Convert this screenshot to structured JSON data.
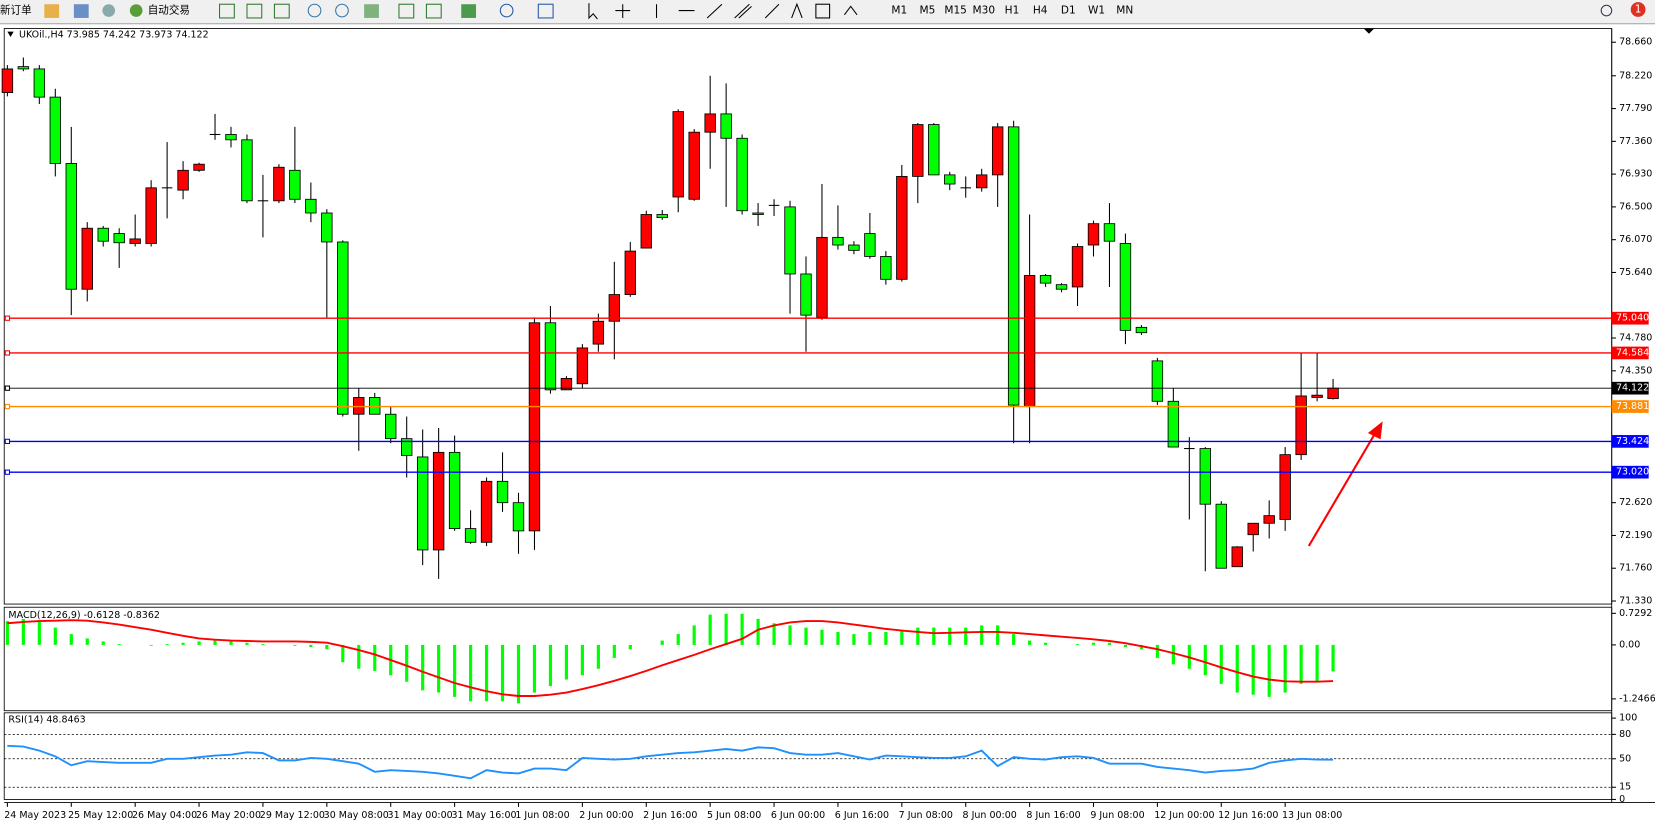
{
  "toolbar": {
    "new_order": "新订单",
    "auto_trading": "自动交易",
    "timeframes": [
      "M1",
      "M5",
      "M15",
      "M30",
      "H1",
      "H4",
      "D1",
      "W1",
      "MN"
    ],
    "notifications": "1"
  },
  "chart_data": [
    {
      "type": "candlestick",
      "header": "UKOil.,H4 73.985 74.242 73.973 74.122",
      "categories": [
        "24 May 2023",
        null,
        null,
        null,
        "25 May 12:00",
        null,
        null,
        null,
        "26 May 04:00",
        null,
        null,
        null,
        "26 May 20:00",
        null,
        null,
        null,
        "29 May 12:00",
        null,
        null,
        null,
        "30 May 08:00",
        null,
        null,
        null,
        "31 May 00:00",
        null,
        null,
        null,
        "31 May 16:00",
        null,
        null,
        null,
        "1 Jun 08:00",
        null,
        null,
        null,
        "2 Jun 00:00",
        null,
        null,
        null,
        "2 Jun 16:00",
        null,
        null,
        null,
        "5 Jun 08:00",
        null,
        null,
        null,
        "6 Jun 00:00",
        null,
        null,
        null,
        "6 Jun 16:00",
        null,
        null,
        null,
        "7 Jun 08:00",
        null,
        null,
        null,
        "8 Jun 00:00",
        null,
        null,
        null,
        "8 Jun 16:00",
        null,
        null,
        null,
        "9 Jun 08:00",
        null,
        null,
        null,
        "12 Jun 00:00",
        null,
        null,
        null,
        "12 Jun 16:00",
        null,
        null,
        null,
        "13 Jun 08:00",
        null,
        null,
        null
      ],
      "open": [
        78.0,
        78.34,
        78.31,
        77.94,
        77.07,
        75.42,
        76.22,
        76.15,
        76.02,
        76.02,
        76.75,
        76.72,
        76.98,
        77.45,
        77.45,
        77.38,
        76.58,
        76.58,
        76.98,
        76.6,
        76.42,
        76.04,
        73.78,
        74.0,
        73.78,
        73.46,
        73.22,
        72.0,
        73.28,
        72.28,
        72.1,
        72.9,
        72.62,
        72.25,
        74.98,
        74.1,
        74.18,
        74.7,
        75.0,
        75.35,
        75.96,
        76.4,
        76.63,
        76.6,
        77.48,
        77.72,
        77.4,
        76.42,
        76.52,
        76.5,
        75.62,
        75.05,
        76.1,
        76.0,
        76.15,
        75.85,
        75.55,
        76.9,
        77.58,
        76.92,
        76.75,
        76.75,
        76.92,
        77.55,
        73.88,
        75.6,
        75.48,
        75.45,
        76.0,
        76.28,
        76.02,
        74.92,
        74.48,
        73.95,
        73.33,
        73.33,
        72.6,
        71.78,
        72.2,
        72.35,
        72.4,
        73.25,
        74.0,
        73.985
      ],
      "high": [
        78.36,
        78.46,
        78.36,
        78.05,
        77.55,
        76.3,
        76.25,
        76.22,
        76.4,
        76.85,
        77.35,
        77.1,
        77.08,
        77.72,
        77.55,
        77.45,
        76.92,
        77.06,
        77.55,
        76.82,
        76.47,
        76.06,
        74.12,
        74.06,
        73.88,
        73.75,
        73.58,
        73.6,
        73.5,
        72.52,
        72.95,
        73.28,
        72.75,
        75.05,
        75.2,
        74.28,
        74.7,
        75.1,
        75.78,
        76.04,
        76.45,
        76.46,
        77.78,
        77.52,
        78.22,
        78.12,
        77.45,
        76.55,
        76.6,
        76.58,
        75.85,
        76.8,
        76.52,
        76.05,
        76.42,
        75.92,
        77.05,
        77.6,
        77.6,
        76.96,
        76.9,
        77.0,
        77.6,
        77.63,
        76.4,
        75.62,
        75.5,
        76.02,
        76.32,
        76.55,
        76.15,
        74.95,
        74.52,
        74.12,
        73.48,
        73.35,
        72.64,
        72.05,
        72.35,
        72.65,
        73.35,
        74.58,
        74.58,
        74.242
      ],
      "low": [
        77.95,
        78.28,
        77.85,
        76.9,
        75.08,
        75.26,
        75.98,
        75.7,
        75.98,
        75.98,
        76.35,
        76.6,
        76.96,
        77.38,
        77.28,
        76.55,
        76.1,
        76.55,
        76.55,
        76.3,
        75.05,
        73.75,
        73.3,
        73.78,
        73.4,
        72.95,
        71.8,
        71.62,
        72.25,
        72.08,
        72.05,
        72.5,
        71.95,
        72.0,
        74.05,
        74.1,
        74.12,
        74.6,
        74.5,
        75.32,
        75.96,
        76.33,
        76.43,
        76.58,
        77.0,
        76.5,
        76.4,
        76.25,
        76.38,
        75.1,
        74.6,
        75.02,
        75.94,
        75.88,
        75.82,
        75.48,
        75.52,
        76.55,
        76.92,
        76.72,
        76.62,
        76.7,
        76.5,
        73.4,
        73.4,
        75.45,
        75.38,
        75.2,
        75.85,
        75.45,
        74.7,
        74.82,
        73.9,
        73.35,
        72.4,
        71.72,
        71.8,
        71.78,
        71.98,
        72.15,
        72.25,
        73.18,
        73.95,
        73.973
      ],
      "close": [
        78.31,
        78.31,
        77.94,
        77.07,
        75.42,
        76.22,
        76.05,
        76.03,
        76.08,
        76.75,
        76.75,
        76.98,
        77.06,
        77.45,
        77.38,
        76.58,
        76.58,
        77.02,
        76.6,
        76.42,
        76.04,
        73.78,
        74.0,
        73.78,
        73.46,
        73.24,
        72.0,
        73.28,
        72.28,
        72.1,
        72.9,
        72.62,
        72.25,
        74.98,
        74.1,
        74.25,
        74.65,
        75.0,
        75.35,
        75.92,
        76.4,
        76.36,
        77.75,
        77.48,
        77.72,
        77.4,
        76.45,
        76.4,
        76.52,
        75.62,
        75.08,
        76.1,
        76.0,
        75.93,
        75.85,
        75.55,
        76.9,
        77.58,
        76.92,
        76.8,
        76.75,
        76.92,
        77.55,
        73.9,
        75.6,
        75.5,
        75.42,
        75.98,
        76.28,
        76.05,
        74.88,
        74.85,
        73.95,
        73.35,
        73.33,
        72.6,
        71.76,
        72.04,
        72.35,
        72.45,
        73.25,
        74.02,
        74.03,
        74.122
      ],
      "up_color": "#ff0000",
      "down_color": "#00ff00",
      "wick_color": "#000000",
      "ylim": [
        71.29,
        78.84
      ],
      "yticks": [
        {
          "value": 78.66,
          "label": "78.660"
        },
        {
          "value": 78.22,
          "label": "78.220"
        },
        {
          "value": 77.79,
          "label": "77.790"
        },
        {
          "value": 77.36,
          "label": "77.360"
        },
        {
          "value": 76.93,
          "label": "76.930"
        },
        {
          "value": 76.5,
          "label": "76.500"
        },
        {
          "value": 76.07,
          "label": "76.070"
        },
        {
          "value": 75.64,
          "label": "75.640"
        },
        {
          "value": 74.78,
          "label": "74.780"
        },
        {
          "value": 74.35,
          "label": "74.350"
        },
        {
          "value": 72.62,
          "label": "72.620"
        },
        {
          "value": 72.19,
          "label": "72.190"
        },
        {
          "value": 71.76,
          "label": "71.760"
        },
        {
          "value": 71.33,
          "label": "71.330"
        }
      ],
      "levels": [
        {
          "value": 75.04,
          "label": "75.040",
          "color": "#ff0000"
        },
        {
          "value": 74.584,
          "label": "74.584",
          "color": "#ff0000"
        },
        {
          "value": 74.122,
          "label": "74.122",
          "color": "#000000"
        },
        {
          "value": 73.881,
          "label": "73.881",
          "color": "#ff8c00"
        },
        {
          "value": 73.424,
          "label": "73.424",
          "color": "#0000ff"
        },
        {
          "value": 73.02,
          "label": "73.020",
          "color": "#0000ff"
        }
      ]
    },
    {
      "type": "macd",
      "label": "MACD(12,26,9) -0.6128 -0.8362",
      "histogram": [
        0.55,
        0.6,
        0.55,
        0.4,
        0.25,
        0.15,
        0.08,
        0.02,
        0.0,
        -0.02,
        0.02,
        0.05,
        0.08,
        0.1,
        0.1,
        0.05,
        0.02,
        0.0,
        -0.02,
        -0.05,
        -0.1,
        -0.4,
        -0.55,
        -0.6,
        -0.7,
        -0.85,
        -1.05,
        -1.1,
        -1.2,
        -1.3,
        -1.3,
        -1.3,
        -1.35,
        -1.1,
        -0.95,
        -0.8,
        -0.7,
        -0.55,
        -0.3,
        -0.1,
        0.0,
        0.1,
        0.25,
        0.45,
        0.7,
        0.72,
        0.72,
        0.6,
        0.5,
        0.45,
        0.4,
        0.35,
        0.3,
        0.25,
        0.3,
        0.3,
        0.35,
        0.4,
        0.4,
        0.4,
        0.4,
        0.45,
        0.45,
        0.25,
        0.1,
        0.05,
        0.0,
        0.02,
        0.05,
        0.05,
        -0.05,
        -0.1,
        -0.3,
        -0.45,
        -0.55,
        -0.7,
        -0.9,
        -1.1,
        -1.15,
        -1.2,
        -1.1,
        -0.9,
        -0.85,
        -0.6128
      ],
      "signal": [
        0.5,
        0.53,
        0.55,
        0.56,
        0.57,
        0.56,
        0.52,
        0.47,
        0.41,
        0.35,
        0.28,
        0.21,
        0.15,
        0.12,
        0.1,
        0.09,
        0.08,
        0.08,
        0.08,
        0.07,
        0.05,
        -0.03,
        -0.12,
        -0.22,
        -0.35,
        -0.48,
        -0.62,
        -0.75,
        -0.88,
        -0.98,
        -1.07,
        -1.14,
        -1.18,
        -1.18,
        -1.15,
        -1.1,
        -1.02,
        -0.93,
        -0.83,
        -0.72,
        -0.6,
        -0.47,
        -0.35,
        -0.23,
        -0.1,
        0.02,
        0.14,
        0.35,
        0.45,
        0.52,
        0.55,
        0.55,
        0.52,
        0.47,
        0.42,
        0.37,
        0.33,
        0.3,
        0.27,
        0.28,
        0.29,
        0.3,
        0.3,
        0.28,
        0.25,
        0.22,
        0.19,
        0.16,
        0.13,
        0.09,
        0.04,
        -0.03,
        -0.1,
        -0.19,
        -0.29,
        -0.4,
        -0.52,
        -0.63,
        -0.73,
        -0.8,
        -0.84,
        -0.85,
        -0.85,
        -0.8362
      ],
      "histogram_color": "#00ff00",
      "signal_color": "#ff0000",
      "ylim": [
        -1.52,
        0.87
      ],
      "yticks": [
        {
          "value": 0.7292,
          "label": "0.7292"
        },
        {
          "value": 0,
          "label": "0.00"
        },
        {
          "value": -1.2466,
          "label": "-1.2466"
        }
      ]
    },
    {
      "type": "rsi",
      "label": "RSI(14) 48.8463",
      "values": [
        66,
        65,
        60,
        53,
        42,
        47,
        46,
        45,
        45,
        45,
        50,
        50,
        52,
        54,
        55,
        58,
        57,
        48,
        48,
        51,
        50,
        47,
        44,
        34,
        36,
        35,
        34,
        32,
        29,
        26,
        36,
        33,
        32,
        38,
        38,
        36,
        51,
        50,
        49,
        50,
        53,
        55,
        57,
        58,
        60,
        62,
        60,
        64,
        63,
        57,
        55,
        55,
        57,
        53,
        49,
        54,
        53,
        52,
        51,
        51,
        53,
        60,
        41,
        52,
        50,
        49,
        52,
        53,
        51,
        44,
        44,
        44,
        40,
        38,
        36,
        33,
        35,
        36,
        38,
        45,
        48,
        50,
        49,
        48.8463
      ],
      "color": "#1e90ff",
      "ylim": [
        0,
        100
      ],
      "yticks": [
        100,
        80,
        50,
        15,
        0
      ],
      "levels": [
        80,
        50,
        15
      ]
    }
  ]
}
